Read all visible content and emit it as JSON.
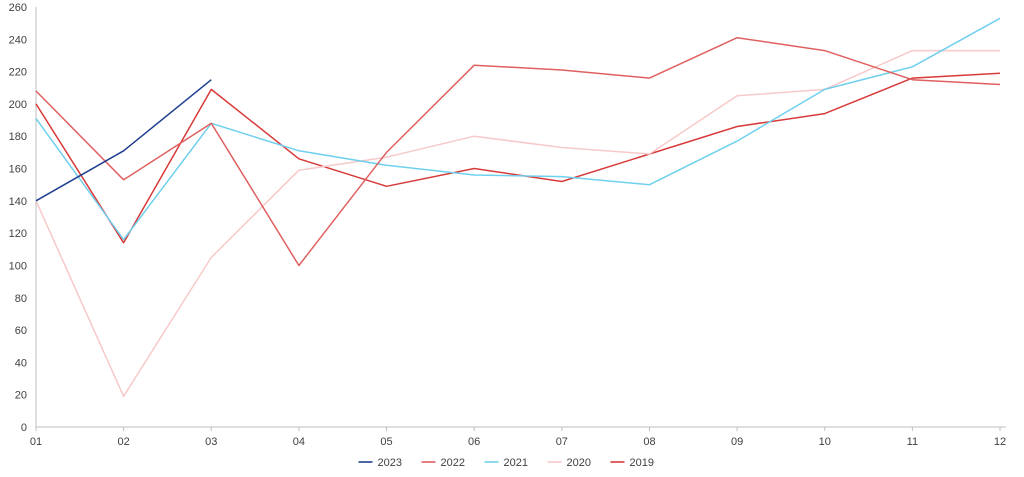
{
  "chart_data": {
    "type": "line",
    "categories": [
      "01",
      "02",
      "03",
      "04",
      "05",
      "06",
      "07",
      "08",
      "09",
      "10",
      "11",
      "12"
    ],
    "ylim": [
      0,
      260
    ],
    "yticks": [
      0,
      20,
      40,
      60,
      80,
      100,
      120,
      140,
      160,
      180,
      200,
      220,
      240,
      260
    ],
    "grid": false,
    "legend_position": "bottom",
    "series": [
      {
        "name": "2023",
        "color": "#1f3f8f",
        "width": 1.5,
        "values": [
          140,
          171,
          215,
          null,
          null,
          null,
          null,
          null,
          null,
          null,
          null,
          null
        ]
      },
      {
        "name": "2022",
        "color": "#e06060",
        "width": 1.5,
        "values": [
          208,
          153,
          188,
          100,
          170,
          224,
          221,
          216,
          241,
          233,
          215,
          212
        ]
      },
      {
        "name": "2021",
        "color": "#6fd0ee",
        "width": 1.3,
        "values": [
          191,
          116,
          188,
          171,
          162,
          156,
          155,
          150,
          177,
          209,
          223,
          253
        ]
      },
      {
        "name": "2020",
        "color": "#f7c9c9",
        "width": 1.3,
        "values": [
          140,
          19,
          105,
          159,
          167,
          180,
          173,
          169,
          205,
          209,
          233,
          233
        ]
      },
      {
        "name": "2019",
        "color": "#d83a3a",
        "width": 1.8,
        "values": [
          200,
          114,
          209,
          166,
          149,
          160,
          152,
          169,
          186,
          194,
          216,
          219
        ]
      }
    ]
  }
}
